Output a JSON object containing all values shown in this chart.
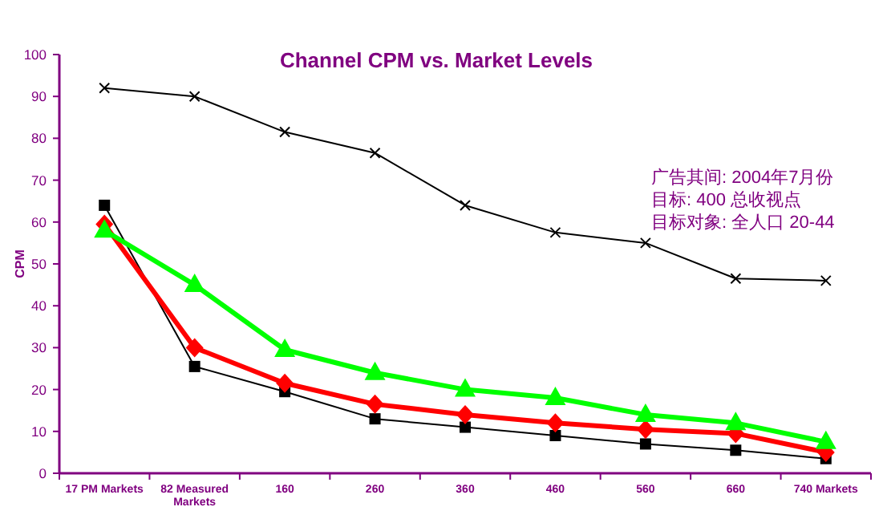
{
  "chart_data": {
    "type": "line",
    "title": "Channel CPM vs. Market Levels",
    "ylabel": "CPM",
    "categories": [
      "17 PM Markets",
      "82 Measured Markets",
      "160",
      "260",
      "360",
      "460",
      "560",
      "660",
      "740 Markets"
    ],
    "ylim": [
      0,
      100
    ],
    "yticks": [
      0,
      10,
      20,
      30,
      40,
      50,
      60,
      70,
      80,
      90,
      100
    ],
    "annotations": [
      "广告其间: 2004年7月份",
      "目标: 400 总收视点",
      "目标对象: 全人口 20-44"
    ],
    "series": [
      {
        "color": "#000000",
        "marker": "cross",
        "values": [
          92,
          90,
          81.5,
          76.5,
          64,
          57.5,
          55,
          46.5,
          46
        ]
      },
      {
        "color": "#000000",
        "marker": "square",
        "values": [
          64,
          25.5,
          19.5,
          13,
          11,
          9,
          7,
          5.5,
          3.5
        ]
      },
      {
        "color": "#ff0000",
        "marker": "diamond",
        "values": [
          59.5,
          30,
          21.5,
          16.5,
          14,
          12,
          10.5,
          9.5,
          5
        ]
      },
      {
        "color": "#00ff00",
        "marker": "triangle",
        "values": [
          58,
          45,
          29.5,
          24,
          20,
          18,
          14,
          12,
          7.5
        ]
      }
    ]
  }
}
